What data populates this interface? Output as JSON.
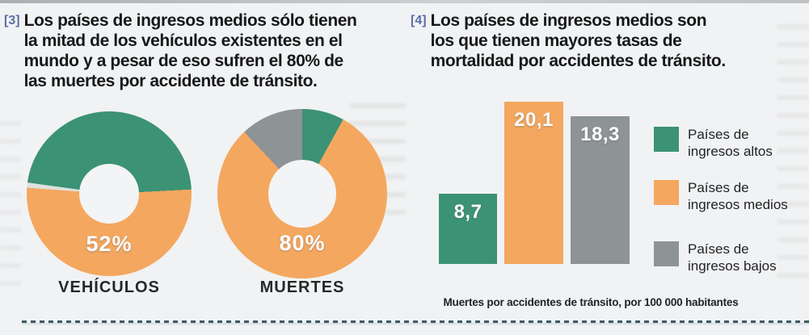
{
  "colors": {
    "green": "#3c9274",
    "orange": "#f4a75f",
    "gray": "#8e9396",
    "sliver": "#dde2e0",
    "marker_blue": "#5a6fa8",
    "dash": "#3e5a62",
    "paper": "#f1f2f3"
  },
  "panel3": {
    "marker": "[3]",
    "heading_lines": [
      "Los países de ingresos medios sólo tienen",
      "la mitad de los vehículos existentes en el",
      "mundo y a pesar de eso sufren el 80% de",
      "las muertes por accidente de tránsito."
    ],
    "donuts": [
      {
        "label": "VEHÍCULOS",
        "value_label": "52%",
        "start_deg": 87,
        "slices": [
          {
            "name": "paises-ingresos-medios",
            "color_key": "orange",
            "pct": 52
          },
          {
            "name": "paises-ingresos-bajos",
            "color_key": "sliver",
            "pct": 1
          },
          {
            "name": "paises-ingresos-altos",
            "color_key": "green",
            "pct": 47
          }
        ]
      },
      {
        "label": "MUERTES",
        "value_label": "80%",
        "start_deg": 0,
        "slices": [
          {
            "name": "paises-ingresos-altos",
            "color_key": "green",
            "pct": 8
          },
          {
            "name": "paises-ingresos-medios",
            "color_key": "orange",
            "pct": 80
          },
          {
            "name": "paises-ingresos-bajos",
            "color_key": "gray",
            "pct": 12
          }
        ]
      }
    ]
  },
  "panel4": {
    "marker": "[4]",
    "heading_lines": [
      "Los países de ingresos medios son",
      "los que tienen mayores tasas de",
      "mortalidad por accidentes de tránsito."
    ],
    "bars": [
      {
        "label": "8,7",
        "value": 8.7,
        "color_key": "green"
      },
      {
        "label": "20,1",
        "value": 20.1,
        "color_key": "orange"
      },
      {
        "label": "18,3",
        "value": 18.3,
        "color_key": "gray"
      }
    ],
    "legend": [
      {
        "color_key": "green",
        "lines": [
          "Países de",
          "ingresos altos"
        ]
      },
      {
        "color_key": "orange",
        "lines": [
          "Países de",
          "ingresos medios"
        ]
      },
      {
        "color_key": "gray",
        "lines": [
          "Países de",
          "ingresos bajos"
        ]
      }
    ],
    "caption": "Muertes por accidentes de tránsito, por 100 000 habitantes"
  },
  "chart_data": [
    {
      "type": "pie",
      "donut": true,
      "title": "VEHÍCULOS",
      "labels": [
        "Países de ingresos altos",
        "Países de ingresos medios",
        "Países de ingresos bajos"
      ],
      "values": [
        47,
        52,
        1
      ],
      "unit": "%",
      "center_label": "52%",
      "colors": [
        "#3c9274",
        "#f4a75f",
        "#dde2e0"
      ]
    },
    {
      "type": "pie",
      "donut": true,
      "title": "MUERTES",
      "labels": [
        "Países de ingresos altos",
        "Países de ingresos medios",
        "Países de ingresos bajos"
      ],
      "values": [
        8,
        80,
        12
      ],
      "unit": "%",
      "center_label": "80%",
      "colors": [
        "#3c9274",
        "#f4a75f",
        "#8e9396"
      ]
    },
    {
      "type": "bar",
      "categories": [
        "Países de ingresos altos",
        "Países de ingresos medios",
        "Países de ingresos bajos"
      ],
      "values": [
        8.7,
        20.1,
        18.3
      ],
      "data_labels": [
        "8,7",
        "20,1",
        "18,3"
      ],
      "title": "",
      "xlabel": "",
      "ylabel": "Muertes por accidentes de tránsito, por 100 000 habitantes",
      "ylim": [
        0,
        20.1
      ],
      "grid": false,
      "legend_position": "right",
      "colors": [
        "#3c9274",
        "#f4a75f",
        "#8e9396"
      ]
    }
  ]
}
